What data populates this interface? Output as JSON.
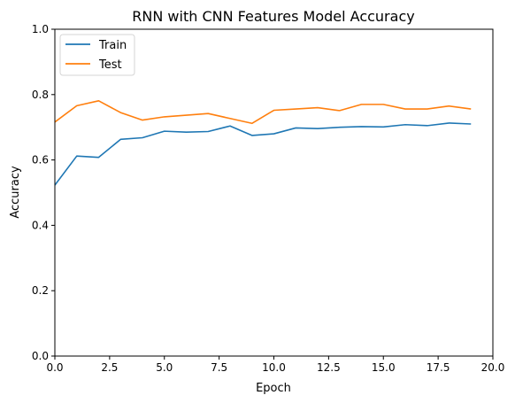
{
  "chart_data": {
    "type": "line",
    "title": "RNN with CNN Features Model Accuracy",
    "xlabel": "Epoch",
    "ylabel": "Accuracy",
    "xlim": [
      0,
      20
    ],
    "ylim": [
      0,
      1.0
    ],
    "xticks": [
      "0.0",
      "2.5",
      "5.0",
      "7.5",
      "10.0",
      "12.5",
      "15.0",
      "17.5",
      "20.0"
    ],
    "yticks": [
      "0.0",
      "0.2",
      "0.4",
      "0.6",
      "0.8",
      "1.0"
    ],
    "grid": false,
    "legend_position": "top-left",
    "x": [
      0,
      1,
      2,
      3,
      4,
      5,
      6,
      7,
      8,
      9,
      10,
      11,
      12,
      13,
      14,
      15,
      16,
      17,
      18,
      19
    ],
    "series": [
      {
        "name": "Train",
        "color": "#1f77b4",
        "values": [
          0.523,
          0.612,
          0.608,
          0.663,
          0.668,
          0.688,
          0.685,
          0.687,
          0.704,
          0.675,
          0.68,
          0.698,
          0.696,
          0.7,
          0.702,
          0.701,
          0.708,
          0.705,
          0.713,
          0.71
        ]
      },
      {
        "name": "Test",
        "color": "#ff7f0e",
        "values": [
          0.716,
          0.766,
          0.781,
          0.745,
          0.722,
          0.732,
          0.737,
          0.742,
          0.727,
          0.712,
          0.752,
          0.756,
          0.76,
          0.751,
          0.77,
          0.77,
          0.756,
          0.756,
          0.765,
          0.756
        ]
      }
    ]
  }
}
